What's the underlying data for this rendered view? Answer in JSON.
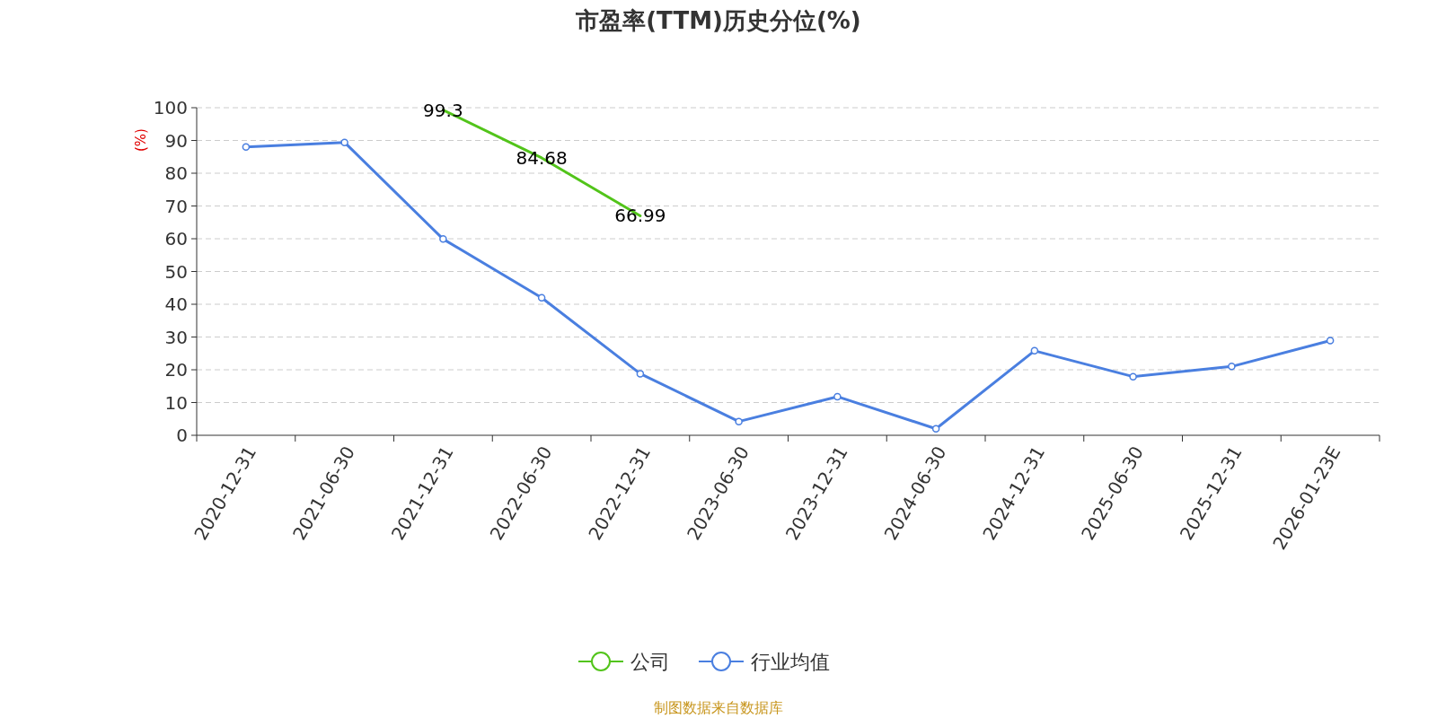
{
  "chart_data": {
    "type": "line",
    "title": "市盈率(TTM)历史分位(%)",
    "ylabel": "(%)",
    "categories": [
      "2020-12-31",
      "2021-06-30",
      "2021-12-31",
      "2022-06-30",
      "2022-12-31",
      "2023-06-30",
      "2023-12-31",
      "2024-06-30",
      "2024-12-31",
      "2025-06-30",
      "2025-12-31",
      "2026-01-23E"
    ],
    "series": [
      {
        "name": "公司",
        "color": "#52c41a",
        "marker": "none",
        "values": [
          null,
          null,
          99.3,
          84.68,
          66.99,
          null,
          null,
          null,
          null,
          null,
          null,
          null
        ],
        "value_labels": [
          null,
          null,
          "99.3",
          "84.68",
          "66.99",
          null,
          null,
          null,
          null,
          null,
          null,
          null
        ]
      },
      {
        "name": "行业均值",
        "color": "#4a7fe0",
        "marker": "circle",
        "values": [
          88.0,
          89.4,
          59.9,
          42.0,
          18.8,
          4.2,
          11.8,
          2.0,
          25.8,
          17.9,
          21.0,
          28.9
        ]
      }
    ],
    "ylim": [
      0,
      100
    ],
    "yticks": [
      0,
      10,
      20,
      30,
      40,
      50,
      60,
      70,
      80,
      90,
      100
    ],
    "grid": "y",
    "legend": "bottom",
    "annotations": [
      "制图数据来自数据库"
    ]
  }
}
